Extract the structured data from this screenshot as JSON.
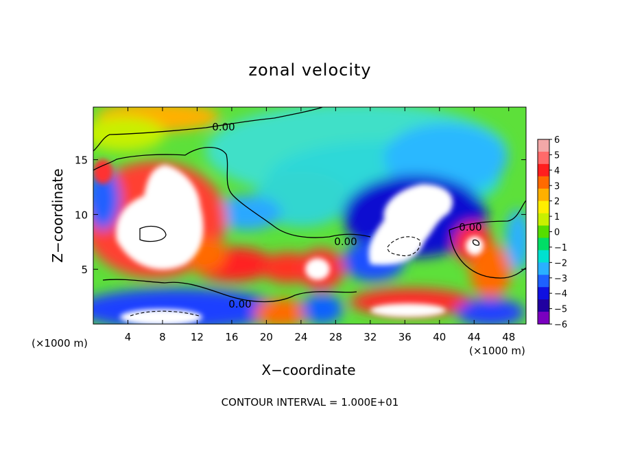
{
  "chart_data": {
    "type": "heatmap",
    "title": "zonal velocity",
    "xlabel": "X−coordinate",
    "ylabel": "Z−coordinate",
    "x_unit_label": "(×1000 m)",
    "z_unit_label": "(×1000 m)",
    "footer": "CONTOUR INTERVAL = 1.000E+01",
    "xlim": [
      0,
      50
    ],
    "ylim": [
      0,
      19.8
    ],
    "x_ticks": [
      4,
      8,
      12,
      16,
      20,
      24,
      28,
      32,
      36,
      40,
      44,
      48
    ],
    "y_ticks": [
      5,
      10,
      15
    ],
    "colorbar": {
      "ticks": [
        6,
        5,
        4,
        3,
        2,
        1,
        0,
        -1,
        -2,
        -3,
        -4,
        -5,
        -6
      ],
      "range": [
        -6,
        6
      ],
      "colors": [
        "#f2a8a8",
        "#ff6a6a",
        "#ff1e1e",
        "#ff6a00",
        "#ffb000",
        "#ffee00",
        "#c8f000",
        "#55dd00",
        "#00dd66",
        "#00e0d0",
        "#2ab0ff",
        "#1e60ff",
        "#1010e0",
        "#2000a0",
        "#7a00c0"
      ]
    },
    "contour_labels": [
      "0.00",
      "0.00",
      "0.00",
      "0.00"
    ],
    "features": [
      {
        "name": "western positive jet (out of range)",
        "x": 7,
        "z": 9.5,
        "value": 7
      },
      {
        "name": "central positive cell",
        "x": 27,
        "z": 5.5,
        "value": 6
      },
      {
        "name": "eastern negative core (out of range)",
        "x": 37,
        "z": 9.5,
        "value": -7
      },
      {
        "name": "eastern positive cell",
        "x": 43.5,
        "z": 7,
        "value": 6
      },
      {
        "name": "upper-left warm band",
        "x": 7,
        "z": 18.5,
        "value": 3
      },
      {
        "name": "upper-right cyan region",
        "x": 32,
        "z": 15,
        "value": -2
      },
      {
        "name": "surface negative band",
        "x": 16,
        "z": 1.5,
        "value": -4
      },
      {
        "name": "background",
        "x": 24,
        "z": 12,
        "value": 0
      }
    ]
  }
}
